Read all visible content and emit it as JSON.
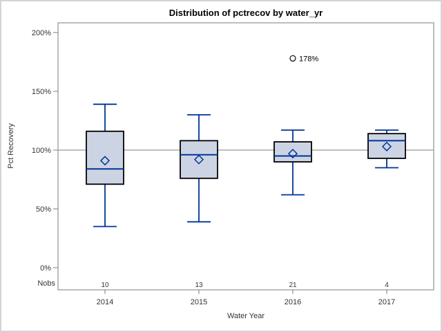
{
  "chart_data": {
    "type": "box",
    "title": "Distribution of pctrecov by water_yr",
    "xlabel": "Water Year",
    "ylabel": "Pct Recovery",
    "nobs_label": "Nobs",
    "y_unit": "%",
    "y_ticks": [
      0,
      50,
      100,
      150,
      200
    ],
    "y_tick_labels": [
      "0%",
      "50%",
      "100%",
      "150%",
      "200%"
    ],
    "ylim": [
      -19,
      208
    ],
    "reference_line": 100,
    "grid": false,
    "legend": null,
    "categories": [
      "2014",
      "2015",
      "2016",
      "2017"
    ],
    "nobs": [
      "10",
      "13",
      "21",
      "4"
    ],
    "boxes": [
      {
        "category": "2014",
        "nobs": 10,
        "whisker_low": 35,
        "q1": 71,
        "median": 84,
        "q3": 116,
        "whisker_high": 139,
        "mean": 91,
        "outliers": []
      },
      {
        "category": "2015",
        "nobs": 13,
        "whisker_low": 39,
        "q1": 76,
        "median": 96,
        "q3": 108,
        "whisker_high": 130,
        "mean": 92,
        "outliers": []
      },
      {
        "category": "2016",
        "nobs": 21,
        "whisker_low": 62,
        "q1": 90,
        "median": 95,
        "q3": 107,
        "whisker_high": 117,
        "mean": 97,
        "outliers": [
          {
            "value": 178,
            "label": "178%"
          }
        ]
      },
      {
        "category": "2017",
        "nobs": 4,
        "whisker_low": 85,
        "q1": 93,
        "median": 108,
        "q3": 114,
        "whisker_high": 117,
        "mean": 103,
        "outliers": []
      }
    ],
    "colors": {
      "box_fill": "#ccd4e4",
      "box_border": "#000000",
      "whisker": "#003399",
      "median": "#003399",
      "mean_marker": "#003399",
      "reference_line": "#a8a8a8",
      "frame": "#919191",
      "outlier": "#1a1a1a",
      "text": "#333333"
    }
  }
}
